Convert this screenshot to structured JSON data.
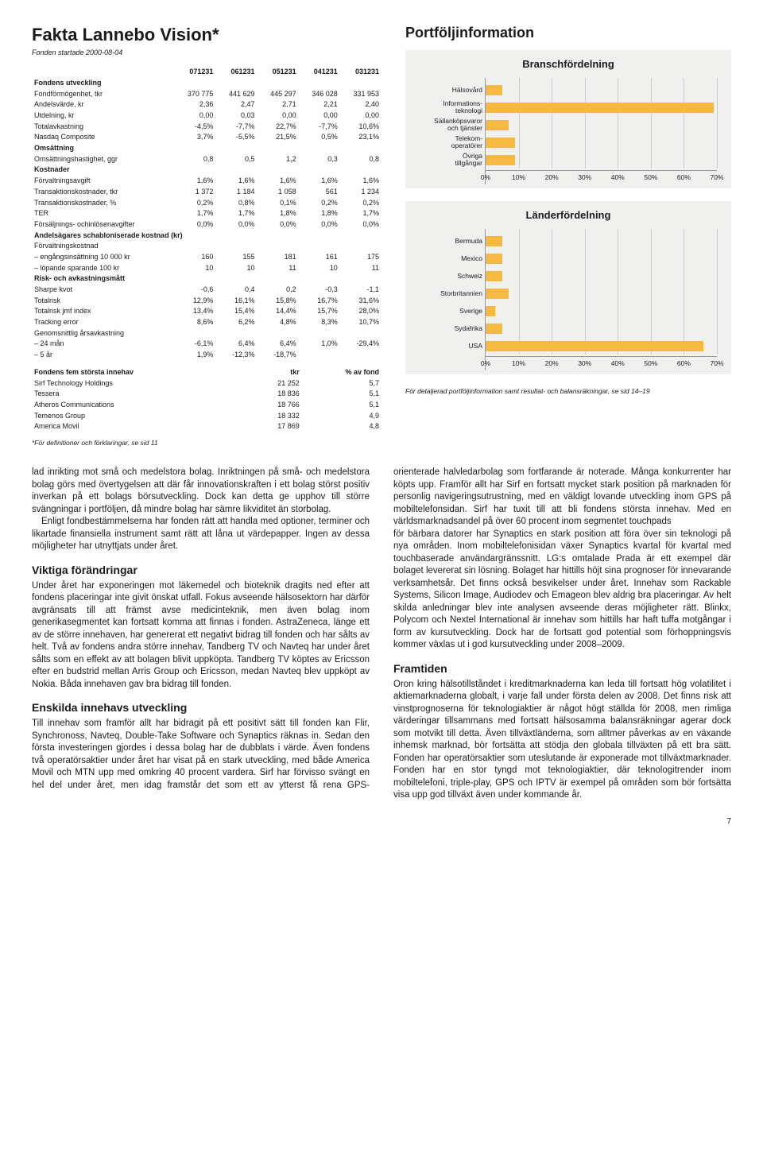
{
  "page_number": "7",
  "sheet": {
    "title": "Fakta Lannebo Vision*",
    "subtitle": "Fonden startade 2000-08-04",
    "footnote": "*För definitioner och förklaringar, se sid 11",
    "col_headers": [
      "",
      "071231",
      "061231",
      "051231",
      "041231",
      "031231"
    ],
    "groups": [
      {
        "header": "Fondens utveckling",
        "rows": [
          [
            "Fondförmögenhet, tkr",
            "370 775",
            "441 629",
            "445 297",
            "346 028",
            "331 953"
          ],
          [
            "Andelsvärde, kr",
            "2,36",
            "2,47",
            "2,71",
            "2,21",
            "2,40"
          ],
          [
            "Utdelning, kr",
            "0,00",
            "0,03",
            "0,00",
            "0,00",
            "0,00"
          ],
          [
            "Totalavkastning",
            "-4,5%",
            "-7,7%",
            "22,7%",
            "-7,7%",
            "10,6%"
          ],
          [
            "Nasdaq Composite",
            "3,7%",
            "-5,5%",
            "21,5%",
            "0,5%",
            "23,1%"
          ]
        ]
      },
      {
        "header": "Omsättning",
        "rows": [
          [
            "Omsättningshastighet, ggr",
            "0,8",
            "0,5",
            "1,2",
            "0,3",
            "0,8"
          ]
        ]
      },
      {
        "header": "Kostnader",
        "rows": [
          [
            "Förvaltningsavgift",
            "1,6%",
            "1,6%",
            "1,6%",
            "1,6%",
            "1,6%"
          ],
          [
            "Transaktionskostnader, tkr",
            "1 372",
            "1 184",
            "1 058",
            "561",
            "1 234"
          ],
          [
            "Transaktionskostnader, %",
            "0,2%",
            "0,8%",
            "0,1%",
            "0,2%",
            "0,2%"
          ],
          [
            "TER",
            "1,7%",
            "1,7%",
            "1,8%",
            "1,8%",
            "1,7%"
          ],
          [
            "Försäljnings- ochinlösenavgifter",
            "0,0%",
            "0,0%",
            "0,0%",
            "0,0%",
            "0,0%"
          ]
        ]
      },
      {
        "header": "Andelsägares schabloniserade kostnad (kr)",
        "rows": [
          [
            "Förvaltningskostnad",
            "",
            "",
            "",
            "",
            ""
          ],
          [
            "– engångsinsättning 10 000 kr",
            "160",
            "155",
            "181",
            "161",
            "175"
          ],
          [
            "– löpande sparande 100 kr",
            "10",
            "10",
            "11",
            "10",
            "11"
          ]
        ]
      },
      {
        "header": "Risk- och avkastningsmått",
        "rows": [
          [
            "Sharpe kvot",
            "-0,6",
            "0,4",
            "0,2",
            "-0,3",
            "-1,1"
          ],
          [
            "Totalrisk",
            "12,9%",
            "16,1%",
            "15,8%",
            "16,7%",
            "31,6%"
          ],
          [
            "Totalrisk jmf index",
            "13,4%",
            "15,4%",
            "14,4%",
            "15,7%",
            "28,0%"
          ],
          [
            "Tracking error",
            "8,6%",
            "6,2%",
            "4,8%",
            "8,3%",
            "10,7%"
          ],
          [
            "Genomsnittlig årsavkastning",
            "",
            "",
            "",
            "",
            ""
          ],
          [
            "– 24 mån",
            "-6,1%",
            "6,4%",
            "6,4%",
            "1,0%",
            "-29,4%"
          ],
          [
            "– 5 år",
            "1,9%",
            "-12,3%",
            "-18,7%",
            "",
            ""
          ]
        ]
      }
    ],
    "holdings": {
      "header": "Fondens fem största innehav",
      "col1": "tkr",
      "col2": "% av fond",
      "rows": [
        [
          "Sirf Technology Holdings",
          "21 252",
          "5,7"
        ],
        [
          "Tessera",
          "18 836",
          "5,1"
        ],
        [
          "Atheros Communications",
          "18 766",
          "5,1"
        ],
        [
          "Temenos Group",
          "18 332",
          "4,9"
        ],
        [
          "America Movil",
          "17 869",
          "4,8"
        ]
      ]
    }
  },
  "portfolio": {
    "title": "Portföljinformation",
    "footnote": "För detaljerad portföljinformation samt resultat- och balansräkningar, se sid 14–19",
    "chart1": {
      "type": "horizontal-bar",
      "title": "Branschfördelning",
      "bar_color": "#f5b942",
      "background_color": "#f0f0ef",
      "grid_color": "#cccccc",
      "xmax": 70,
      "xtick_step": 10,
      "xtick_suffix": "%",
      "bars": [
        {
          "label": "Hälsovård",
          "value": 5
        },
        {
          "label": "Informations-\nteknologi",
          "value": 69
        },
        {
          "label": "Sällanköpsvaror\noch tjänster",
          "value": 7
        },
        {
          "label": "Telekom-\noperatörer",
          "value": 9
        },
        {
          "label": "Övriga\ntillgångar",
          "value": 9
        }
      ]
    },
    "chart2": {
      "type": "horizontal-bar",
      "title": "Länderfördelning",
      "bar_color": "#f5b942",
      "background_color": "#f0f0ef",
      "grid_color": "#cccccc",
      "xmax": 70,
      "xtick_step": 10,
      "xtick_suffix": "%",
      "bars": [
        {
          "label": "Bermuda",
          "value": 5
        },
        {
          "label": "Mexico",
          "value": 5
        },
        {
          "label": "Schweiz",
          "value": 5
        },
        {
          "label": "Storbritannien",
          "value": 7
        },
        {
          "label": "Sverige",
          "value": 3
        },
        {
          "label": "Sydafrika",
          "value": 5
        },
        {
          "label": "USA",
          "value": 66
        }
      ]
    }
  },
  "body": {
    "p1": "lad inrikting mot små och medelstora bolag. Inriktningen på små- och medelstora bolag görs med övertygelsen att där får innovationskraften i ett bolag störst positiv inverkan på ett bolags börsutveckling. Dock kan detta ge upphov till större svängningar i portföljen, då mindre bolag har sämre likviditet än storbolag.",
    "p1b": "Enligt fondbestämmelserna har fonden rätt att handla med optioner, terminer och likartade finansiella instrument samt rätt att låna ut värdepapper. Ingen av dessa möjligheter har utnyttjats under året.",
    "h2": "Viktiga förändringar",
    "p2": "Under året har exponeringen mot läkemedel och bioteknik dragits ned efter att fondens placeringar inte givit önskat utfall. Fokus avseende hälsosektorn har därför avgränsats till att främst avse medicinteknik, men även bolag inom generikasegmentet kan fortsatt komma att finnas i fonden. AstraZeneca, länge ett av de större innehaven, har genererat ett negativt bidrag till fonden och har sålts av helt. Två av fondens andra större innehav, Tandberg TV och Navteq har under året sålts som en effekt av att bolagen blivit uppköpta. Tandberg TV köptes av Ericsson efter en budstrid mellan Arris Group och Ericsson, medan Navteq blev uppköpt av Nokia. Båda innehaven gav bra bidrag till fonden.",
    "h3": "Enskilda innehavs utveckling",
    "p3": "Till innehav som framför allt har bidragit på ett positivt sätt till fonden kan Flir, Synchronoss, Navteq, Double-Take Software och Synaptics räknas in. Sedan den första investeringen gjordes i dessa bolag har de dubblats i värde. Även fondens två operatörsaktier under året har visat på en stark utveckling, med både America Movil och MTN upp med omkring 40 procent vardera. Sirf har förvisso svängt en hel del under året, men idag framstår det som ett av ytterst få rena GPS-orienterade halvledarbolag som fortfarande är noterade. Många konkurrenter har köpts upp. Framför allt har Sirf en fortsatt mycket stark position på marknaden för personlig navigeringsutrustning, med en väldigt lovande utveckling inom GPS på mobiltelefonsidan. Sirf har tuxit till att bli fondens största innehav. Med en världsmarknadsandel på över 60 procent inom segmentet touchpads",
    "p4": "för bärbara datorer har Synaptics en stark position att föra över sin teknologi på nya områden. Inom mobiltelefonisidan växer Synaptics kvartal för kvartal med touchbaserade användargränssnitt. LG:s omtalade Prada är ett exempel där bolaget levererat sin lösning. Bolaget har hittills höjt sina prognoser för innevarande verksamhetsår. Det finns också besvikelser under året. Innehav som Rackable Systems, Silicon Image, Audiodev och Emageon blev aldrig bra placeringar. Av helt skilda anledningar blev inte analysen avseende deras möjligheter rätt. Blinkx, Polycom och Nextel International är innehav som hittills har haft tuffa motgångar i form av kursutveckling. Dock har de fortsatt god potential som förhoppningsvis kommer växlas ut i god kursutveckling under 2008–2009.",
    "h4": "Framtiden",
    "p5": "Oron kring hälsotillståndet i kreditmarknaderna kan leda till fortsatt hög volatilitet i aktiemarknaderna globalt, i varje fall under första delen av 2008. Det finns risk att vinstprognoserna för teknologiaktier är något högt ställda för 2008, men rimliga värderingar tillsammans med fortsatt hälsosamma balansräkningar agerar dock som motvikt till detta. Även tillväxtländerna, som alltmer påverkas av en växande inhemsk marknad, bör fortsätta att stödja den globala tillväxten på ett bra sätt. Fonden har operatörsaktier som uteslutande är exponerade mot tillväxtmarknader. Fonden har en stor tyngd mot teknologiaktier, där teknologitrender inom mobiltelefoni, triple-play, GPS och IPTV är exempel på områden som bör fortsätta visa upp god tillväxt även under kommande år."
  }
}
